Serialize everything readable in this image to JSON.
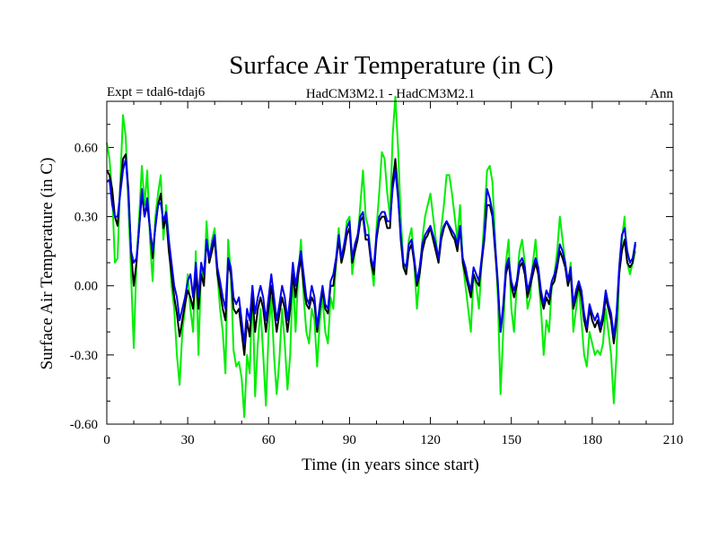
{
  "chart_data": {
    "type": "line",
    "title": "Surface Air Temperature (in C)",
    "subtitle_left": "Expt = tdal6-tdaj6",
    "subtitle_center": "HadCM3M2.1 - HadCM3M2.1",
    "subtitle_right": "Ann",
    "xlabel": "Time (in years since start)",
    "ylabel": "Surface Air Temperature (in C)",
    "xlim": [
      0,
      210
    ],
    "ylim": [
      -0.6,
      0.8
    ],
    "x_ticks": [
      0,
      30,
      60,
      90,
      120,
      150,
      180,
      210
    ],
    "x_tick_labels": [
      "0",
      "30",
      "60",
      "90",
      "120",
      "150",
      "180",
      "210"
    ],
    "y_ticks": [
      -0.6,
      -0.3,
      0.0,
      0.3,
      0.6
    ],
    "y_tick_labels": [
      "-0.60",
      "-0.30",
      "0.00",
      "0.30",
      "0.60"
    ],
    "grid": false,
    "x_start": 0,
    "x_step": 1,
    "series": [
      {
        "name": "green",
        "color": "#00ee00",
        "values": [
          0.62,
          0.55,
          0.4,
          0.1,
          0.12,
          0.45,
          0.74,
          0.65,
          0.35,
          0.05,
          -0.27,
          0.1,
          0.3,
          0.52,
          0.35,
          0.5,
          0.2,
          0.02,
          0.3,
          0.4,
          0.48,
          0.2,
          0.35,
          0.2,
          0.0,
          -0.1,
          -0.3,
          -0.43,
          -0.2,
          -0.1,
          0.05,
          -0.1,
          -0.2,
          0.15,
          -0.3,
          0.1,
          0.0,
          0.28,
          0.1,
          0.2,
          0.25,
          0.05,
          -0.1,
          -0.2,
          -0.38,
          0.2,
          0.05,
          -0.28,
          -0.35,
          -0.33,
          -0.4,
          -0.57,
          -0.3,
          -0.38,
          0.0,
          -0.48,
          -0.25,
          -0.1,
          -0.3,
          -0.52,
          -0.2,
          -0.05,
          -0.3,
          -0.47,
          -0.32,
          -0.1,
          -0.25,
          -0.45,
          -0.3,
          0.05,
          -0.2,
          0.05,
          0.2,
          -0.05,
          -0.2,
          -0.25,
          -0.1,
          -0.15,
          -0.35,
          -0.15,
          -0.05,
          -0.2,
          -0.25,
          -0.05,
          -0.1,
          0.1,
          0.25,
          0.1,
          0.15,
          0.28,
          0.3,
          0.05,
          0.15,
          0.2,
          0.35,
          0.5,
          0.3,
          0.25,
          0.1,
          0.0,
          0.25,
          0.4,
          0.58,
          0.55,
          0.4,
          0.3,
          0.65,
          0.82,
          0.6,
          0.3,
          0.1,
          0.05,
          0.2,
          0.25,
          0.1,
          -0.1,
          0.05,
          0.2,
          0.3,
          0.35,
          0.4,
          0.3,
          0.2,
          0.1,
          0.25,
          0.35,
          0.48,
          0.48,
          0.4,
          0.3,
          0.2,
          0.35,
          0.1,
          0.0,
          -0.1,
          -0.2,
          0.05,
          0.0,
          -0.1,
          0.1,
          0.3,
          0.5,
          0.52,
          0.45,
          0.2,
          -0.05,
          -0.47,
          -0.2,
          0.1,
          0.2,
          -0.1,
          -0.2,
          0.0,
          0.15,
          0.2,
          0.1,
          -0.1,
          -0.05,
          0.1,
          0.2,
          0.05,
          -0.1,
          -0.3,
          -0.15,
          -0.2,
          0.0,
          0.05,
          0.15,
          0.3,
          0.2,
          0.1,
          0.0,
          0.1,
          -0.2,
          -0.1,
          0.0,
          -0.15,
          -0.3,
          -0.35,
          -0.2,
          -0.25,
          -0.3,
          -0.28,
          -0.3,
          -0.25,
          -0.1,
          -0.2,
          -0.3,
          -0.51,
          -0.3,
          0.05,
          0.2,
          0.3,
          0.1,
          0.05,
          0.1,
          0.15
        ]
      },
      {
        "name": "black",
        "color": "#000000",
        "values": [
          0.5,
          0.48,
          0.42,
          0.3,
          0.26,
          0.42,
          0.55,
          0.57,
          0.42,
          0.15,
          0.0,
          0.1,
          0.25,
          0.4,
          0.3,
          0.35,
          0.25,
          0.12,
          0.26,
          0.35,
          0.4,
          0.25,
          0.3,
          0.15,
          0.05,
          -0.05,
          -0.12,
          -0.22,
          -0.15,
          -0.08,
          -0.02,
          -0.05,
          -0.1,
          0.05,
          -0.1,
          0.05,
          0.0,
          0.2,
          0.1,
          0.15,
          0.2,
          0.05,
          -0.02,
          -0.1,
          -0.15,
          0.1,
          0.05,
          -0.1,
          -0.12,
          -0.1,
          -0.2,
          -0.3,
          -0.15,
          -0.22,
          -0.05,
          -0.2,
          -0.1,
          -0.05,
          -0.1,
          -0.2,
          -0.1,
          0.0,
          -0.1,
          -0.2,
          -0.12,
          -0.05,
          -0.1,
          -0.2,
          -0.1,
          0.05,
          -0.05,
          0.05,
          0.12,
          0.0,
          -0.08,
          -0.1,
          -0.05,
          -0.08,
          -0.2,
          -0.1,
          -0.02,
          -0.1,
          -0.12,
          0.0,
          0.0,
          0.1,
          0.2,
          0.1,
          0.15,
          0.22,
          0.25,
          0.1,
          0.15,
          0.2,
          0.28,
          0.3,
          0.2,
          0.2,
          0.1,
          0.05,
          0.2,
          0.28,
          0.3,
          0.3,
          0.25,
          0.25,
          0.45,
          0.55,
          0.4,
          0.2,
          0.08,
          0.05,
          0.15,
          0.18,
          0.1,
          0.0,
          0.05,
          0.15,
          0.2,
          0.22,
          0.25,
          0.2,
          0.15,
          0.1,
          0.2,
          0.25,
          0.28,
          0.25,
          0.22,
          0.2,
          0.15,
          0.25,
          0.1,
          0.05,
          0.0,
          -0.05,
          0.05,
          0.02,
          0.0,
          0.1,
          0.2,
          0.35,
          0.35,
          0.3,
          0.15,
          0.0,
          -0.2,
          -0.1,
          0.05,
          0.1,
          0.0,
          -0.05,
          0.0,
          0.08,
          0.1,
          0.05,
          -0.05,
          0.0,
          0.05,
          0.1,
          0.05,
          -0.05,
          -0.1,
          -0.05,
          -0.08,
          0.0,
          0.02,
          0.08,
          0.15,
          0.12,
          0.08,
          0.0,
          0.05,
          -0.1,
          -0.05,
          0.0,
          -0.05,
          -0.15,
          -0.2,
          -0.1,
          -0.15,
          -0.18,
          -0.15,
          -0.2,
          -0.15,
          -0.05,
          -0.1,
          -0.15,
          -0.25,
          -0.15,
          0.05,
          0.15,
          0.2,
          0.1,
          0.08,
          0.1,
          0.18
        ]
      },
      {
        "name": "blue",
        "color": "#0000ee",
        "values": [
          0.45,
          0.46,
          0.35,
          0.3,
          0.3,
          0.4,
          0.5,
          0.55,
          0.4,
          0.15,
          0.1,
          0.12,
          0.25,
          0.42,
          0.3,
          0.38,
          0.25,
          0.15,
          0.25,
          0.35,
          0.36,
          0.28,
          0.32,
          0.2,
          0.1,
          0.0,
          -0.05,
          -0.15,
          -0.1,
          -0.05,
          0.02,
          0.05,
          -0.05,
          0.1,
          -0.05,
          0.1,
          0.05,
          0.2,
          0.12,
          0.18,
          0.22,
          0.08,
          0.02,
          -0.05,
          -0.1,
          0.12,
          0.08,
          -0.05,
          -0.08,
          -0.05,
          -0.15,
          -0.25,
          -0.1,
          -0.15,
          0.0,
          -0.12,
          -0.05,
          0.0,
          -0.05,
          -0.15,
          -0.05,
          0.05,
          -0.05,
          -0.15,
          -0.08,
          0.0,
          -0.05,
          -0.15,
          -0.05,
          0.1,
          0.0,
          0.08,
          0.15,
          0.05,
          -0.05,
          -0.08,
          0.0,
          -0.05,
          -0.18,
          -0.08,
          0.0,
          -0.08,
          -0.1,
          0.02,
          0.05,
          0.12,
          0.22,
          0.12,
          0.18,
          0.25,
          0.28,
          0.12,
          0.18,
          0.22,
          0.3,
          0.32,
          0.22,
          0.22,
          0.12,
          0.08,
          0.22,
          0.3,
          0.32,
          0.32,
          0.28,
          0.28,
          0.42,
          0.5,
          0.38,
          0.22,
          0.1,
          0.08,
          0.18,
          0.2,
          0.12,
          0.02,
          0.08,
          0.18,
          0.22,
          0.24,
          0.26,
          0.22,
          0.18,
          0.12,
          0.22,
          0.26,
          0.28,
          0.26,
          0.24,
          0.22,
          0.18,
          0.26,
          0.12,
          0.08,
          0.02,
          -0.02,
          0.08,
          0.05,
          0.02,
          0.12,
          0.22,
          0.42,
          0.38,
          0.32,
          0.18,
          0.02,
          -0.2,
          -0.08,
          0.08,
          0.12,
          0.02,
          -0.02,
          0.02,
          0.1,
          0.12,
          0.08,
          -0.02,
          0.02,
          0.08,
          0.12,
          0.08,
          -0.02,
          -0.08,
          -0.02,
          -0.05,
          0.02,
          0.05,
          0.1,
          0.18,
          0.15,
          0.1,
          0.02,
          0.08,
          -0.08,
          -0.02,
          0.02,
          -0.02,
          -0.12,
          -0.18,
          -0.08,
          -0.12,
          -0.15,
          -0.12,
          -0.18,
          -0.12,
          -0.02,
          -0.08,
          -0.12,
          -0.22,
          -0.12,
          0.08,
          0.22,
          0.25,
          0.15,
          0.1,
          0.12,
          0.19
        ]
      }
    ]
  }
}
